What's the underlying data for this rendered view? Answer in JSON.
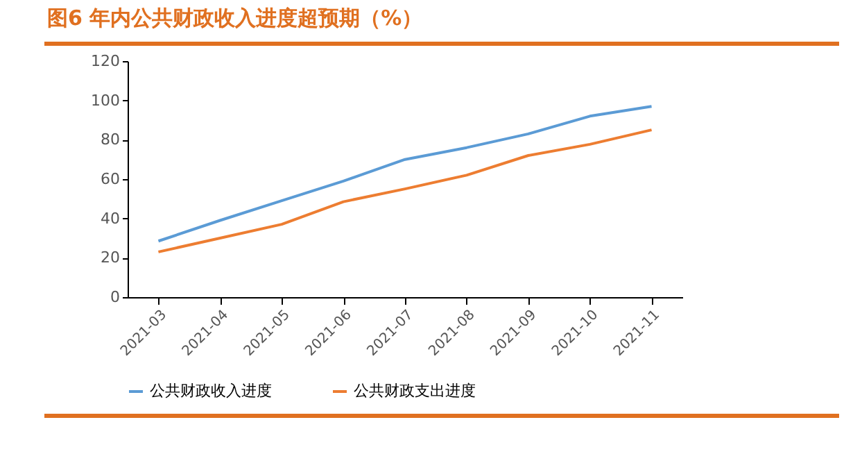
{
  "chart_data": {
    "type": "line",
    "title": "图6 年内公共财政收入进度超预期（%）",
    "categories": [
      "2021-03",
      "2021-04",
      "2021-05",
      "2021-06",
      "2021-07",
      "2021-08",
      "2021-09",
      "2021-10",
      "2021-11"
    ],
    "series": [
      {
        "name": "公共财政收入进度",
        "color": "#5b9bd5",
        "values": [
          28.5,
          39,
          49,
          59,
          70,
          76,
          83,
          92,
          97
        ]
      },
      {
        "name": "公共财政支出进度",
        "color": "#ed7d31",
        "values": [
          23,
          30,
          37,
          48.5,
          55,
          62,
          72,
          77.7,
          85
        ]
      }
    ],
    "ylim": [
      0,
      120
    ],
    "yticks": [
      0,
      20,
      40,
      60,
      80,
      100,
      120
    ],
    "grid": false,
    "legend": "bottom"
  }
}
